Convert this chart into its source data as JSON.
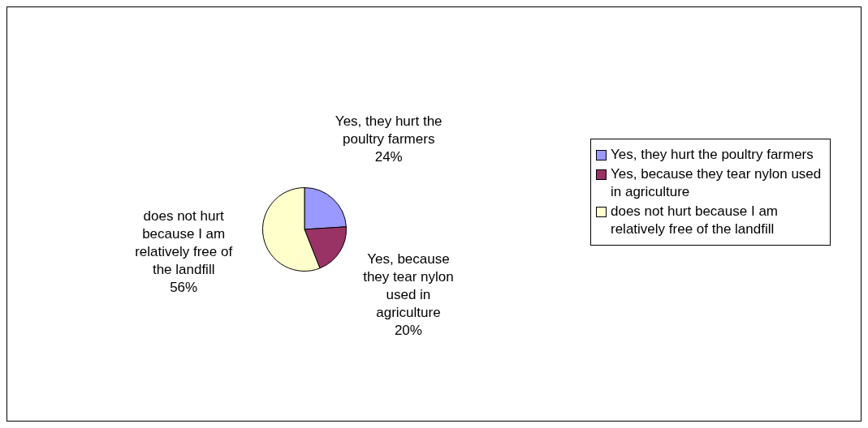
{
  "chart_data": {
    "type": "pie",
    "categories": [
      "Yes, they hurt the poultry farmers",
      "Yes, because they tear nylon used in agriculture",
      "does not hurt because I am relatively free of the landfill"
    ],
    "values": [
      24,
      20,
      56
    ],
    "colors": [
      "#9999ff",
      "#993366",
      "#ffffcc"
    ],
    "value_labels": [
      "24%",
      "20%",
      "56%"
    ],
    "legend": "right"
  }
}
